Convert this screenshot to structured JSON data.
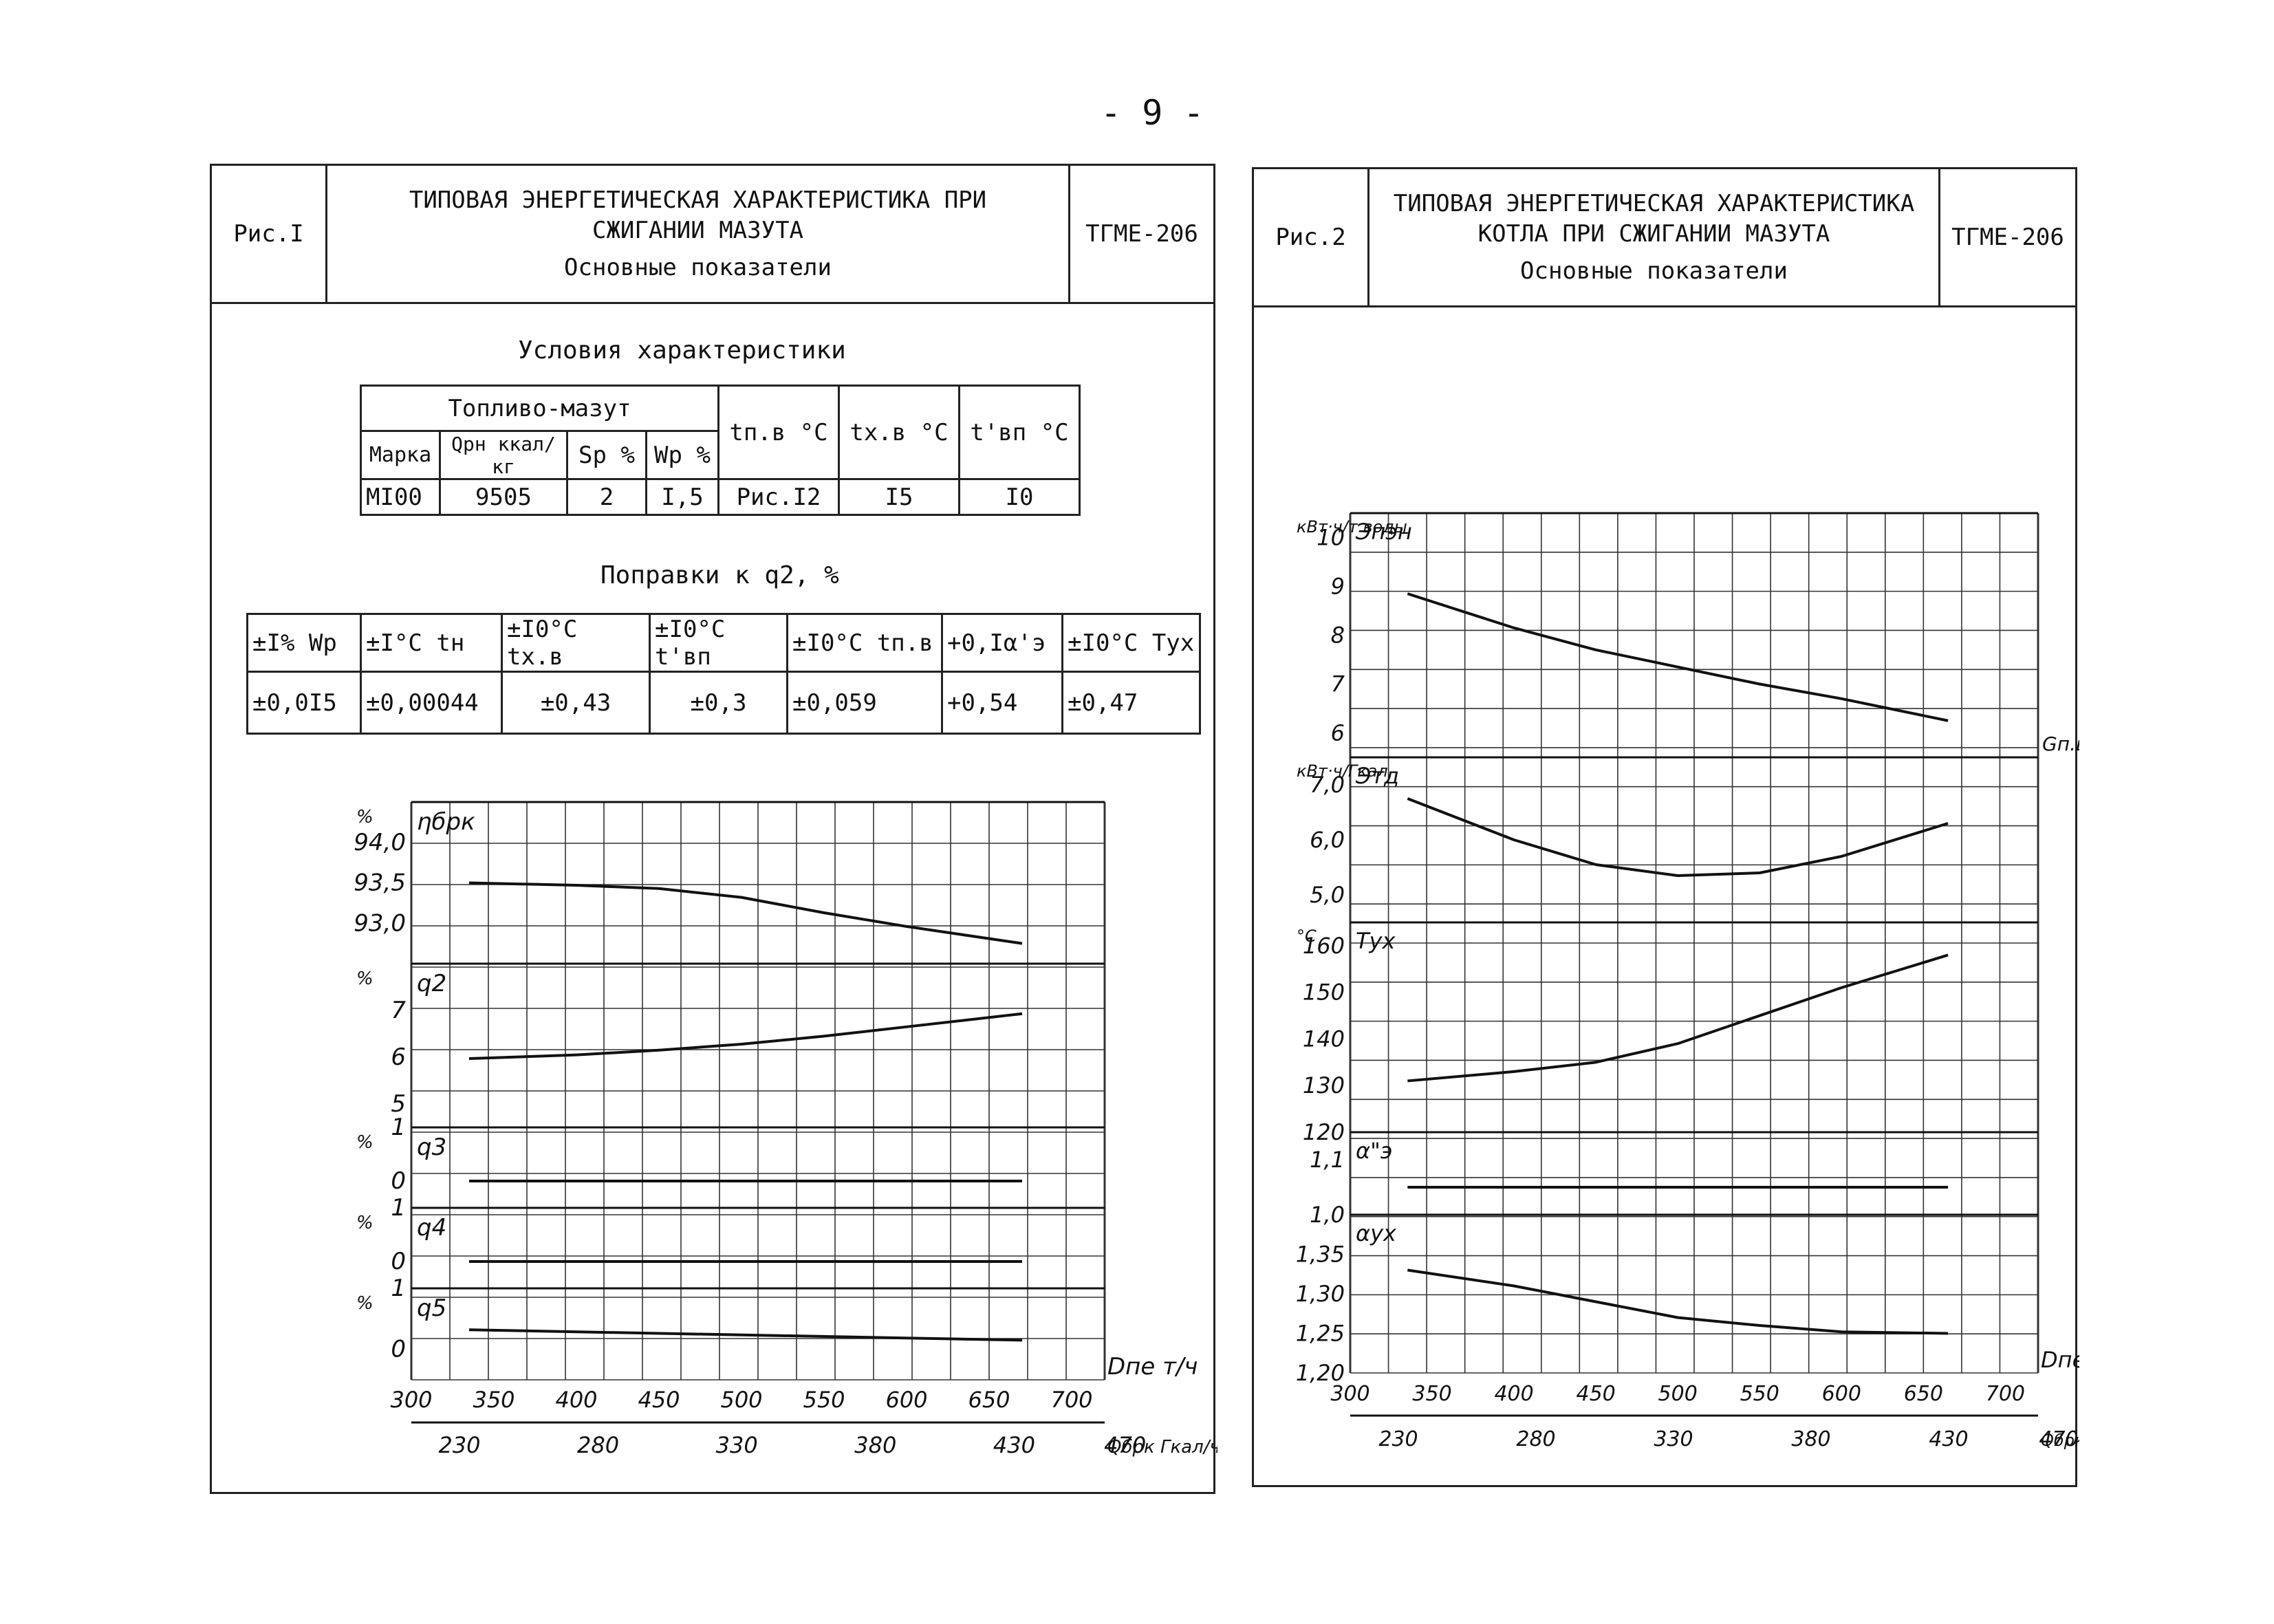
{
  "page_number": "- 9 -",
  "fig1": {
    "label": "Рис.I",
    "title_line1": "ТИПОВАЯ ЭНЕРГЕТИЧЕСКАЯ ХАРАКТЕРИСТИКА ПРИ",
    "title_line2": "СЖИГАНИИ МАЗУТА",
    "subtitle": "Основные показатели",
    "code": "ТГМЕ-206",
    "conditions_title": "Условия характеристики",
    "cond_table": {
      "fuel": "Топливо-мазут",
      "h_tpv": "tп.в °C",
      "h_txv": "tх.в °C",
      "h_tvp": "t'вп °C",
      "h_marka": "Марка",
      "h_q": "Qрн ккал/кг",
      "h_s": "Sр %",
      "h_w": "Wр %",
      "v_marka": "МI00",
      "v_q": "9505",
      "v_s": "2",
      "v_w": "I,5",
      "v_tpv": "Рис.I2",
      "v_txv": "I5",
      "v_tvp": "I0"
    },
    "corr_title": "Поправки к q2, %",
    "corr_headers": [
      "±I% Wр",
      "±I°C tн",
      "±I0°C tх.в",
      "±I0°C t'вп",
      "±I0°C tп.в",
      "+0,Iα'э",
      "±I0°C Тух"
    ],
    "corr_values": [
      "±0,0I5",
      "±0,00044",
      "±0,43",
      "±0,3",
      "±0,059",
      "+0,54",
      "±0,47"
    ]
  },
  "fig2": {
    "label": "Рис.2",
    "title_line1": "ТИПОВАЯ ЭНЕРГЕТИЧЕСКАЯ ХАРАКТЕРИСТИКА",
    "title_line2": "КОТЛА ПРИ СЖИГАНИИ МАЗУТА",
    "subtitle": "Основные показатели",
    "code": "ТГМЕ-206"
  },
  "chart_data": [
    {
      "type": "line",
      "chart_id": "fig1",
      "x_top": {
        "label": "Dпе т/ч",
        "ticks": [
          "300",
          "350",
          "400",
          "450",
          "500",
          "550",
          "600",
          "650",
          "700"
        ]
      },
      "x_bottom": {
        "label": "Qбрк Гкал/ч",
        "ticks": [
          "230",
          "280",
          "330",
          "380",
          "430",
          "470"
        ]
      },
      "panels": [
        {
          "label": "ηбрк",
          "unit": "%",
          "ylim": [
            92.5,
            94.5
          ],
          "ticks": [
            "94,0",
            "93,5",
            "93,0"
          ],
          "series": [
            {
              "x": [
                335,
                400,
                450,
                500,
                550,
                600,
                670
              ],
              "y": [
                93.5,
                93.47,
                93.43,
                93.32,
                93.13,
                92.96,
                92.75
              ]
            }
          ]
        },
        {
          "label": "q2",
          "unit": "%",
          "ylim": [
            4.5,
            8
          ],
          "ticks": [
            "7",
            "6",
            "5"
          ],
          "series": [
            {
              "x": [
                335,
                400,
                450,
                500,
                550,
                600,
                670
              ],
              "y": [
                5.97,
                6.05,
                6.15,
                6.28,
                6.45,
                6.65,
                6.93
              ]
            }
          ]
        },
        {
          "label": "q3",
          "unit": "%",
          "ylim": [
            -0.5,
            1
          ],
          "ticks": [
            "1",
            "0"
          ],
          "series": [
            {
              "x": [
                335,
                670
              ],
              "y": [
                0,
                0
              ]
            }
          ]
        },
        {
          "label": "q4",
          "unit": "%",
          "ylim": [
            -0.5,
            1
          ],
          "ticks": [
            "1",
            "0"
          ],
          "series": [
            {
              "x": [
                335,
                670
              ],
              "y": [
                0,
                0
              ]
            }
          ]
        },
        {
          "label": "q5",
          "unit": "%",
          "ylim": [
            -0.5,
            1
          ],
          "ticks": [
            "1",
            "0"
          ],
          "series": [
            {
              "x": [
                335,
                670
              ],
              "y": [
                0.32,
                0.15
              ]
            }
          ]
        }
      ]
    },
    {
      "type": "line",
      "chart_id": "fig2",
      "x_top": {
        "label": "Dпе",
        "ticks": [
          "300",
          "350",
          "400",
          "450",
          "500",
          "550",
          "600",
          "650",
          "700"
        ]
      },
      "x_bottom": {
        "label": "Qбрк Гкал/ч",
        "ticks": [
          "230",
          "280",
          "330",
          "380",
          "430",
          "470"
        ]
      },
      "panels": [
        {
          "label": "Эпэн",
          "unit": "кВт·ч/т воды",
          "ylim": [
            5.5,
            10.5
          ],
          "ticks": [
            "10",
            "9",
            "8",
            "7",
            "6"
          ],
          "series": [
            {
              "x": [
                335,
                400,
                450,
                500,
                550,
                600,
                665
              ],
              "y": [
                8.85,
                8.15,
                7.7,
                7.35,
                7.0,
                6.7,
                6.25
              ]
            }
          ]
        },
        {
          "label": "Этд",
          "unit": "кВт·ч/Гкал",
          "ylim": [
            4.5,
            7.5
          ],
          "ticks": [
            "7,0",
            "6,0",
            "5,0"
          ],
          "right_label": "Gп.в т/ч",
          "series": [
            {
              "x": [
                335,
                400,
                450,
                500,
                550,
                600,
                665
              ],
              "y": [
                6.75,
                6.0,
                5.55,
                5.35,
                5.4,
                5.7,
                6.3
              ]
            }
          ]
        },
        {
          "label": "Тух",
          "unit": "°C",
          "ylim": [
            120,
            165
          ],
          "ticks": [
            "160",
            "150",
            "140",
            "130",
            "120"
          ],
          "series": [
            {
              "x": [
                335,
                400,
                450,
                500,
                550,
                600,
                665
              ],
              "y": [
                131,
                133,
                135,
                139,
                145,
                151,
                158
              ]
            }
          ]
        },
        {
          "label": "α\"э",
          "unit": "",
          "ylim": [
            1.0,
            1.15
          ],
          "ticks": [
            "1,1",
            "1,0"
          ],
          "series": [
            {
              "x": [
                335,
                665
              ],
              "y": [
                1.05,
                1.05
              ]
            }
          ]
        },
        {
          "label": "αух",
          "unit": "",
          "ylim": [
            1.2,
            1.4
          ],
          "ticks": [
            "1,35",
            "1,30",
            "1,25",
            "1,20"
          ],
          "series": [
            {
              "x": [
                335,
                400,
                450,
                500,
                550,
                600,
                665
              ],
              "y": [
                1.33,
                1.31,
                1.29,
                1.27,
                1.26,
                1.252,
                1.25
              ]
            }
          ]
        }
      ]
    }
  ]
}
